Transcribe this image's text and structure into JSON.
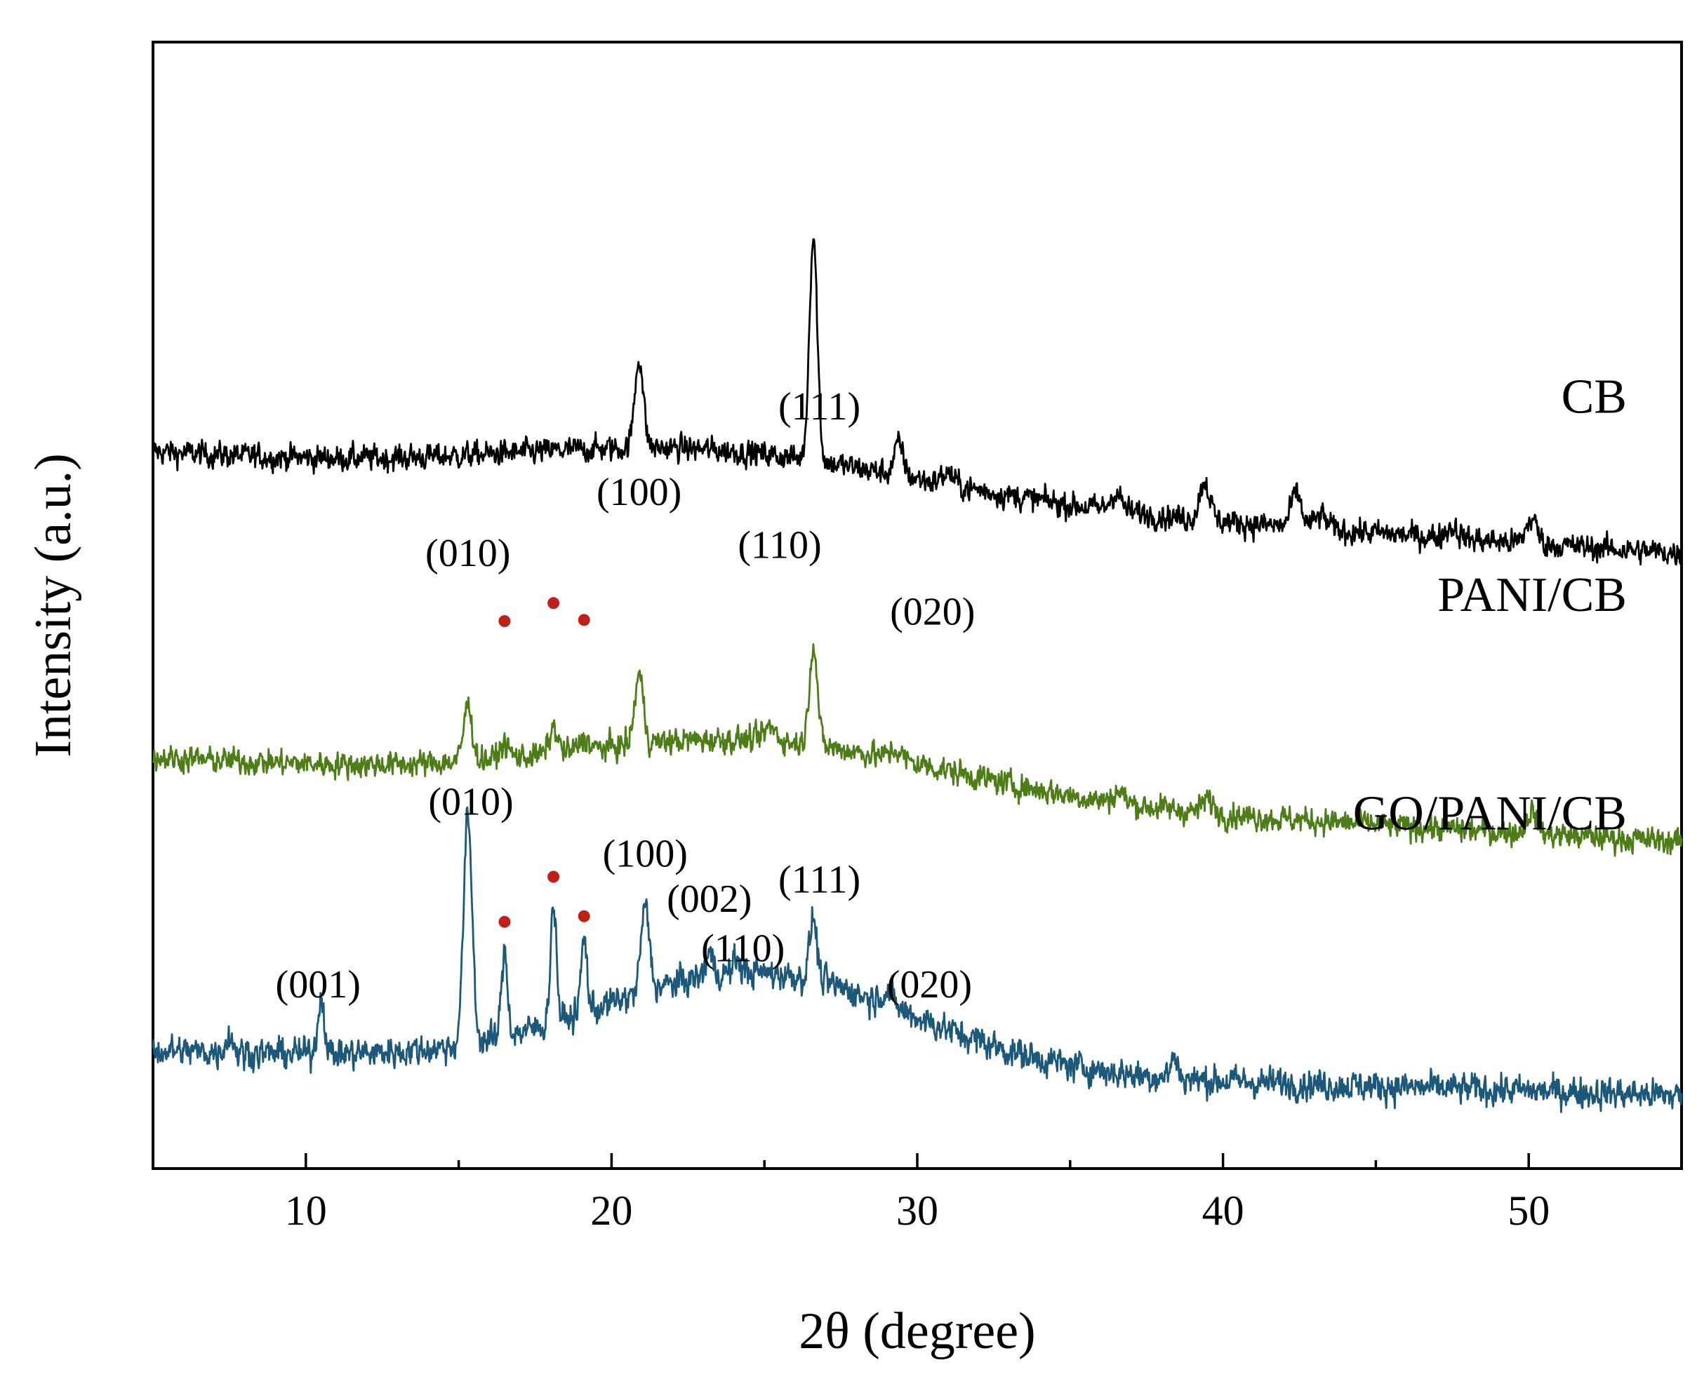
{
  "chart_data": {
    "type": "line",
    "xlabel": "2θ (degree)",
    "ylabel": "Intensity (a.u.)",
    "xlim": [
      5,
      55
    ],
    "xticks": [
      10,
      20,
      30,
      40,
      50
    ],
    "xtick_labels": [
      "10",
      "20",
      "30",
      "40",
      "50"
    ],
    "minor_xticks": [
      15,
      25,
      35,
      45
    ],
    "yticks": [],
    "marker_color": "#c0201a",
    "series": [
      {
        "name": "CB",
        "color": "#000000",
        "baseline": 0.636,
        "hump": {
          "amplitude": 0.035,
          "center": 23.5,
          "width": 6.5
        },
        "slope": -0.0018,
        "noise": 0.01,
        "peaks": [
          {
            "x": 20.9,
            "height": 0.08,
            "width": 0.14
          },
          {
            "x": 26.6,
            "height": 0.2,
            "width": 0.13
          },
          {
            "x": 29.4,
            "height": 0.028,
            "width": 0.15
          },
          {
            "x": 31.0,
            "height": 0.01,
            "width": 0.2
          },
          {
            "x": 36.5,
            "height": 0.016,
            "width": 0.18
          },
          {
            "x": 39.4,
            "height": 0.034,
            "width": 0.17
          },
          {
            "x": 42.4,
            "height": 0.03,
            "width": 0.17
          },
          {
            "x": 43.2,
            "height": 0.012,
            "width": 0.2
          },
          {
            "x": 47.5,
            "height": 0.01,
            "width": 0.2
          },
          {
            "x": 50.1,
            "height": 0.022,
            "width": 0.18
          }
        ],
        "peak_labels": [],
        "markers": []
      },
      {
        "name": "PANI/CB",
        "color": "#4d7d17",
        "baseline": 0.365,
        "hump": {
          "amplitude": 0.045,
          "center": 25.0,
          "width": 6.0
        },
        "slope": -0.0015,
        "noise": 0.01,
        "peaks": [
          {
            "x": 15.3,
            "height": 0.05,
            "width": 0.14
          },
          {
            "x": 16.5,
            "height": 0.012,
            "width": 0.15
          },
          {
            "x": 18.1,
            "height": 0.022,
            "width": 0.14
          },
          {
            "x": 19.1,
            "height": 0.01,
            "width": 0.15
          },
          {
            "x": 20.9,
            "height": 0.062,
            "width": 0.14
          },
          {
            "x": 25.2,
            "height": 0.012,
            "width": 0.2
          },
          {
            "x": 26.6,
            "height": 0.09,
            "width": 0.13
          },
          {
            "x": 29.3,
            "height": 0.008,
            "width": 0.2
          },
          {
            "x": 36.6,
            "height": 0.01,
            "width": 0.18
          },
          {
            "x": 39.5,
            "height": 0.012,
            "width": 0.18
          },
          {
            "x": 50.1,
            "height": 0.02,
            "width": 0.17
          }
        ],
        "peak_labels": [
          {
            "text": "(010)",
            "x": 15.3,
            "y": 0.535
          },
          {
            "text": "(100)",
            "x": 20.9,
            "y": 0.589
          },
          {
            "text": "(110)",
            "x": 25.5,
            "y": 0.542
          },
          {
            "text": "(111)",
            "x": 26.8,
            "y": 0.665
          },
          {
            "text": "(020)",
            "x": 30.5,
            "y": 0.483
          }
        ],
        "markers": [
          {
            "x": 16.5,
            "y": 0.486
          },
          {
            "x": 18.1,
            "y": 0.502
          },
          {
            "x": 19.1,
            "y": 0.487
          }
        ]
      },
      {
        "name": "GO/PANI/CB",
        "color": "#1b587a",
        "baseline": 0.105,
        "hump": {
          "amplitude": 0.085,
          "center": 24.8,
          "width": 5.0
        },
        "slope": -0.0008,
        "noise": 0.012,
        "peaks": [
          {
            "x": 7.5,
            "height": 0.015,
            "width": 0.12
          },
          {
            "x": 10.5,
            "height": 0.05,
            "width": 0.11
          },
          {
            "x": 15.3,
            "height": 0.2,
            "width": 0.14
          },
          {
            "x": 16.5,
            "height": 0.075,
            "width": 0.1
          },
          {
            "x": 18.1,
            "height": 0.105,
            "width": 0.1
          },
          {
            "x": 19.1,
            "height": 0.065,
            "width": 0.1
          },
          {
            "x": 21.1,
            "height": 0.075,
            "width": 0.14
          },
          {
            "x": 23.2,
            "height": 0.02,
            "width": 0.12
          },
          {
            "x": 24.1,
            "height": 0.012,
            "width": 0.12
          },
          {
            "x": 26.6,
            "height": 0.055,
            "width": 0.12
          },
          {
            "x": 29.0,
            "height": 0.012,
            "width": 0.2
          },
          {
            "x": 38.4,
            "height": 0.018,
            "width": 0.12
          }
        ],
        "peak_labels": [
          {
            "text": "(001)",
            "x": 10.4,
            "y": 0.152
          },
          {
            "text": "(010)",
            "x": 15.4,
            "y": 0.314
          },
          {
            "text": "(100)",
            "x": 21.1,
            "y": 0.268
          },
          {
            "text": "(002)",
            "x": 23.2,
            "y": 0.228
          },
          {
            "text": "(110)",
            "x": 24.3,
            "y": 0.184
          },
          {
            "text": "(111)",
            "x": 26.8,
            "y": 0.245
          },
          {
            "text": "(020)",
            "x": 30.4,
            "y": 0.152
          }
        ],
        "markers": [
          {
            "x": 16.5,
            "y": 0.219
          },
          {
            "x": 18.1,
            "y": 0.259
          },
          {
            "x": 19.1,
            "y": 0.224
          }
        ]
      }
    ]
  }
}
